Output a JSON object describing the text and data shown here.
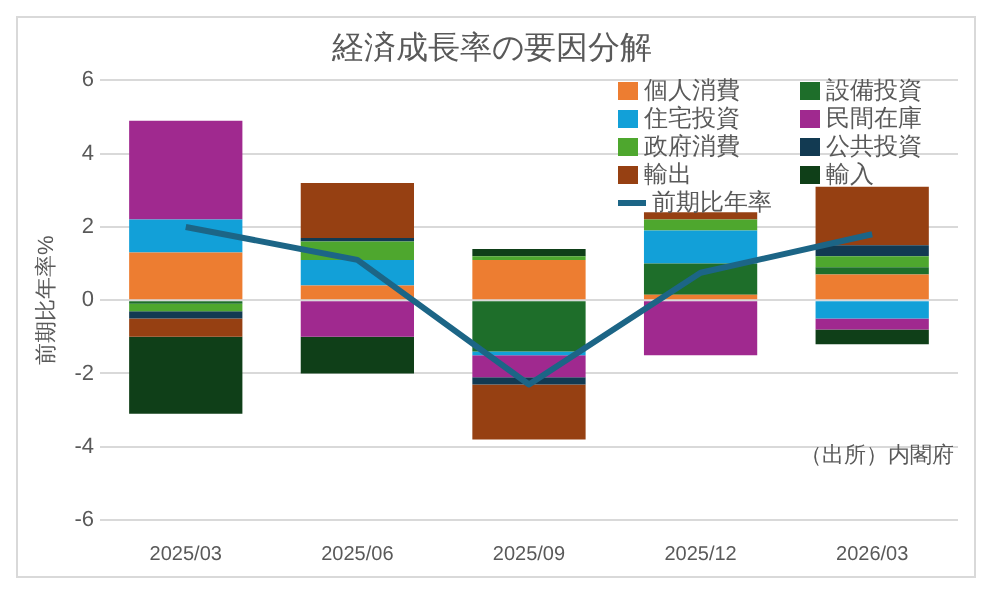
{
  "chart_data": {
    "type": "bar",
    "stacked": true,
    "title": "経済成長率の要因分解",
    "ylabel": "前期比年率%",
    "categories": [
      "2025/03",
      "2025/06",
      "2025/09",
      "2025/12",
      "2026/03"
    ],
    "series": [
      {
        "name": "個人消費",
        "color": "#ed7d31",
        "values": [
          1.3,
          0.4,
          1.1,
          0.15,
          0.7
        ]
      },
      {
        "name": "設備投資",
        "color": "#1e6e2a",
        "values": [
          -0.1,
          0,
          -1.4,
          0.85,
          0.2
        ]
      },
      {
        "name": "住宅投資",
        "color": "#12a0d8",
        "values": [
          0.9,
          0.7,
          -0.1,
          0.9,
          -0.5
        ]
      },
      {
        "name": "民間在庫",
        "color": "#a0298f",
        "values": [
          2.7,
          -1.0,
          -0.6,
          -1.5,
          -0.3
        ]
      },
      {
        "name": "政府消費",
        "color": "#4ea72e",
        "values": [
          -0.2,
          0.5,
          0.1,
          0.3,
          0.3
        ]
      },
      {
        "name": "公共投資",
        "color": "#123a52",
        "values": [
          -0.2,
          0.1,
          -0.2,
          0,
          0.3
        ]
      },
      {
        "name": "輸出",
        "color": "#964012",
        "values": [
          -0.5,
          1.5,
          -1.5,
          0.2,
          1.6
        ]
      },
      {
        "name": "輸入",
        "color": "#0f3f18",
        "values": [
          -2.1,
          -1.0,
          0.2,
          0,
          -0.4
        ]
      },
      {
        "name": "前期比年率",
        "type": "line",
        "color": "#1c6586",
        "values": [
          2.0,
          1.1,
          -2.3,
          0.75,
          1.8
        ]
      }
    ],
    "ylim": [
      -6,
      6
    ],
    "yticks": [
      -6,
      -4,
      -2,
      0,
      2,
      4,
      6
    ],
    "grid": "y",
    "legend": "top right",
    "marker": "none",
    "line_style": "solid",
    "annotations": [
      "（出所）内閣府"
    ]
  }
}
